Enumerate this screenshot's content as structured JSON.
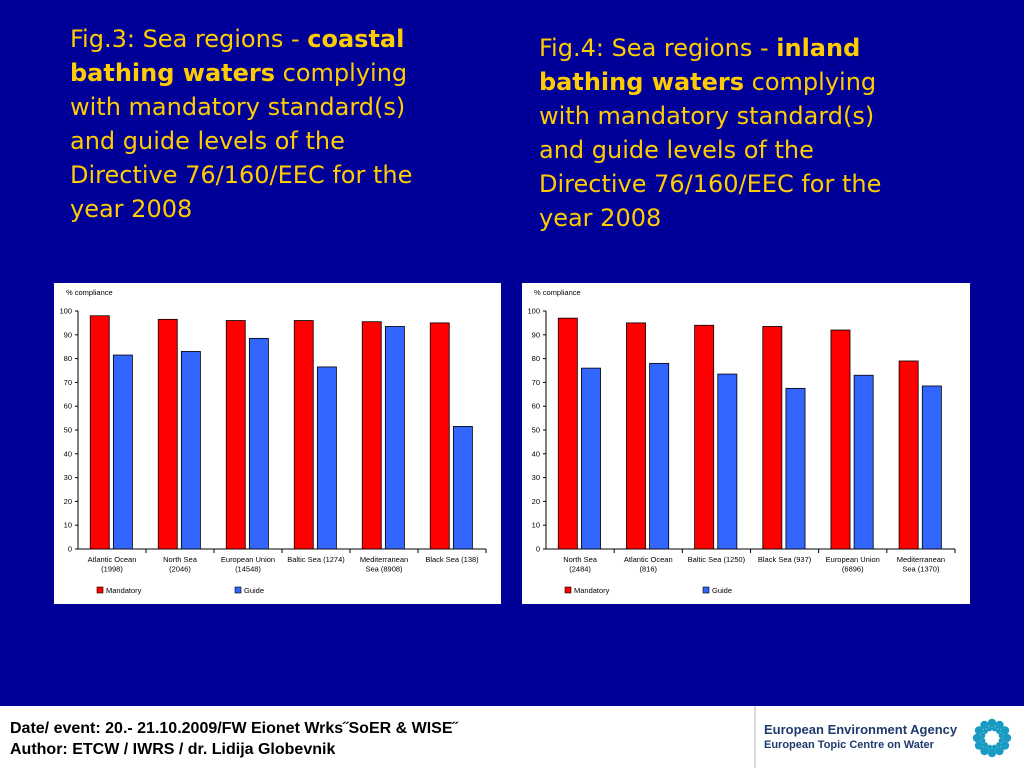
{
  "fig3": {
    "prefix": "Fig.3: Sea regions -",
    "bold": "coastal bathing waters",
    "rest": "complying with mandatory standard(s) and guide levels of the Directive 76/160/EEC for the year 2008"
  },
  "fig4": {
    "prefix": "Fig.4: Sea regions -",
    "bold": "inland bathing waters",
    "rest": "complying with mandatory standard(s) and guide levels of the Directive 76/160/EEC for the year 2008"
  },
  "chart_data": [
    {
      "type": "bar",
      "ylabel": "% compliance",
      "ylim": [
        0,
        100
      ],
      "yticks": [
        0,
        10,
        20,
        30,
        40,
        50,
        60,
        70,
        80,
        90,
        100
      ],
      "categories": [
        [
          "Atlantic Ocean",
          "(1998)"
        ],
        [
          "North Sea",
          "(2046)"
        ],
        [
          "European Union",
          "(14548)"
        ],
        [
          "Baltic Sea (1274)"
        ],
        [
          "Mediterranean",
          "Sea (8908)"
        ],
        [
          "Black Sea (138)"
        ]
      ],
      "series": [
        {
          "name": "Mandatory",
          "color": "#FF0000",
          "values": [
            98,
            96.5,
            96,
            96,
            95.5,
            95
          ]
        },
        {
          "name": "Guide",
          "color": "#3366FF",
          "values": [
            81.5,
            83,
            88.5,
            76.5,
            93.5,
            51.5
          ]
        }
      ],
      "legend": "bottom",
      "grid": false
    },
    {
      "type": "bar",
      "ylabel": "% compliance",
      "ylim": [
        0,
        100
      ],
      "yticks": [
        0,
        10,
        20,
        30,
        40,
        50,
        60,
        70,
        80,
        90,
        100
      ],
      "categories": [
        [
          "North Sea",
          "(2484)"
        ],
        [
          "Atlantic Ocean",
          "(816)"
        ],
        [
          "Baltic Sea (1250)"
        ],
        [
          "Black Sea (937)"
        ],
        [
          "European Union",
          "(6896)"
        ],
        [
          "Mediterranean",
          "Sea (1370)"
        ]
      ],
      "series": [
        {
          "name": "Mandatory",
          "color": "#FF0000",
          "values": [
            97,
            95,
            94,
            93.5,
            92,
            79
          ]
        },
        {
          "name": "Guide",
          "color": "#3366FF",
          "values": [
            76,
            78,
            73.5,
            67.5,
            73,
            68.5
          ]
        }
      ],
      "legend": "bottom",
      "grid": false
    }
  ],
  "footer": {
    "line1": "Date/ event: 20.- 21.10.2009/FW Eionet Wrks˝SoER & WISE˝",
    "line2": "Author: ETCW / IWRS / dr. Lidija Globevnik",
    "org1": "European Environment Agency",
    "org2": "European Topic Centre on Water",
    "logo_icon": "eea-sun-logo-icon",
    "logo_color": "#1a9bc4"
  }
}
